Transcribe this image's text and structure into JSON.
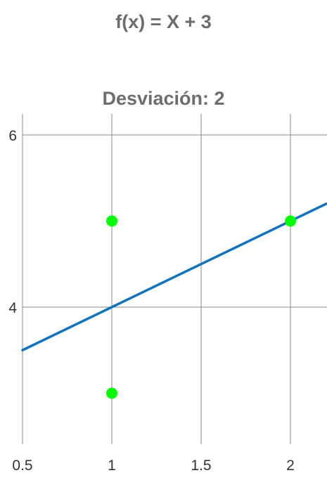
{
  "header": {
    "function_title": "f(x) = X + 3"
  },
  "chart_data": {
    "type": "scatter",
    "title": "f(x) = X + 3",
    "subtitle": "Desviación: 2",
    "xlabel": "",
    "ylabel": "",
    "xlim": [
      0.5,
      2.2
    ],
    "ylim": [
      2.5,
      6.0
    ],
    "x_ticks": [
      {
        "value": 0.5,
        "label": "0.5"
      },
      {
        "value": 1,
        "label": "1"
      },
      {
        "value": 1.5,
        "label": "1.5"
      },
      {
        "value": 2,
        "label": "2"
      }
    ],
    "y_ticks": [
      {
        "value": 4,
        "label": "4"
      },
      {
        "value": 6,
        "label": "6"
      }
    ],
    "grid": true,
    "line": {
      "x": [
        0.5,
        2.2
      ],
      "y": [
        3.5,
        5.2
      ],
      "color": "#1273bd"
    },
    "points": {
      "x": [
        1,
        1,
        2
      ],
      "y": [
        5,
        3,
        5
      ],
      "color": "#00ff00"
    }
  }
}
